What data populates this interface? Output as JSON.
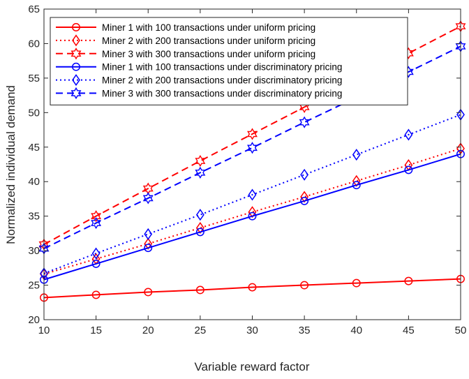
{
  "chart_data": {
    "type": "line",
    "xlabel": "Variable reward factor",
    "ylabel": "Normalized individual demand",
    "xlim": [
      10,
      50
    ],
    "ylim": [
      20,
      65
    ],
    "xticks": [
      "10",
      "15",
      "20",
      "25",
      "30",
      "35",
      "40",
      "45",
      "50"
    ],
    "yticks": [
      "20",
      "25",
      "30",
      "35",
      "40",
      "45",
      "50",
      "55",
      "60",
      "65"
    ],
    "x": [
      10,
      15,
      20,
      25,
      30,
      35,
      40,
      45,
      50
    ],
    "grid": false,
    "legend_position": "top-left",
    "series": [
      {
        "name": "Miner 1 with 100 transactions under uniform pricing",
        "color": "#ff0000",
        "line": "solid",
        "marker": "circle",
        "values": [
          23.2,
          23.6,
          24.0,
          24.3,
          24.7,
          25.0,
          25.3,
          25.6,
          25.9
        ]
      },
      {
        "name": "Miner 2 with 200 transactions under uniform pricing",
        "color": "#ff0000",
        "line": "dotted",
        "marker": "diamond",
        "values": [
          26.6,
          28.8,
          31.0,
          33.3,
          35.6,
          37.8,
          40.1,
          42.4,
          44.8
        ]
      },
      {
        "name": "Miner 3 with 300 transactions under uniform pricing",
        "color": "#ff0000",
        "line": "dashed",
        "marker": "hexagram",
        "values": [
          30.9,
          35.0,
          39.0,
          43.0,
          46.9,
          50.8,
          54.7,
          58.6,
          62.5
        ]
      },
      {
        "name": "Miner 1 with 100 transactions under discriminatory pricing",
        "color": "#0000ff",
        "line": "solid",
        "marker": "circle",
        "values": [
          25.8,
          28.1,
          30.4,
          32.7,
          35.0,
          37.2,
          39.5,
          41.7,
          44.0
        ]
      },
      {
        "name": "Miner 2 with 200 transactions under discriminatory pricing",
        "color": "#0000ff",
        "line": "dotted",
        "marker": "diamond",
        "values": [
          26.7,
          29.6,
          32.4,
          35.2,
          38.1,
          41.0,
          43.9,
          46.8,
          49.7
        ]
      },
      {
        "name": "Miner 3 with 300 transactions under discriminatory pricing",
        "color": "#0000ff",
        "line": "dashed",
        "marker": "hexagram",
        "values": [
          30.3,
          34.0,
          37.6,
          41.3,
          44.9,
          48.6,
          52.2,
          55.9,
          59.6
        ]
      }
    ]
  }
}
